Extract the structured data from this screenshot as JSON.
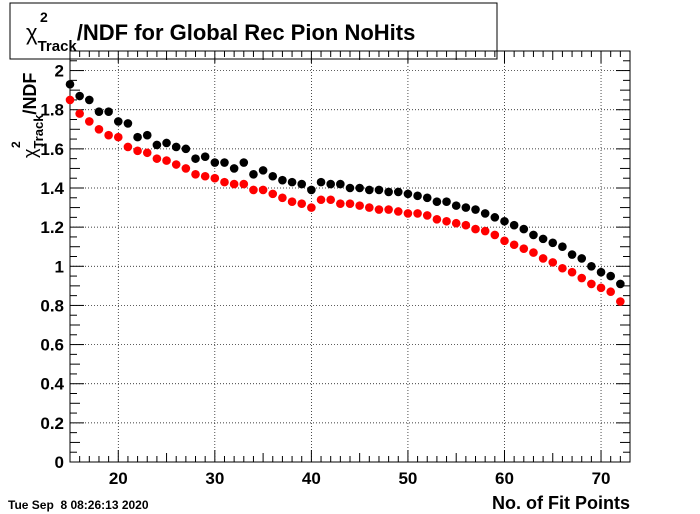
{
  "chart_data": {
    "type": "scatter",
    "title": {
      "symbol": "χ",
      "superscript": "2",
      "subscript": "Track",
      "text": "/NDF for Global Rec Pion NoHits"
    },
    "xlabel": "No. of Fit Points",
    "ylabel": {
      "symbol": "χ",
      "superscript": "2",
      "subscript": "Track",
      "text": "/NDF"
    },
    "xlim": [
      15,
      73
    ],
    "ylim": [
      0,
      2.1
    ],
    "x_major_ticks": [
      20,
      30,
      40,
      50,
      60,
      70
    ],
    "x_tick_labels": [
      "20",
      "30",
      "40",
      "50",
      "60",
      "70"
    ],
    "y_major_ticks": [
      0,
      0.2,
      0.4,
      0.6,
      0.8,
      1,
      1.2,
      1.4,
      1.6,
      1.8,
      2
    ],
    "y_tick_labels": [
      "0",
      "0.2",
      "0.4",
      "0.6",
      "0.8",
      "1",
      "1.2",
      "1.4",
      "1.6",
      "1.8",
      "2"
    ],
    "grid": true,
    "x": [
      15,
      16,
      17,
      18,
      19,
      20,
      21,
      22,
      23,
      24,
      25,
      26,
      27,
      28,
      29,
      30,
      31,
      32,
      33,
      34,
      35,
      36,
      37,
      38,
      39,
      40,
      41,
      42,
      43,
      44,
      45,
      46,
      47,
      48,
      49,
      50,
      51,
      52,
      53,
      54,
      55,
      56,
      57,
      58,
      59,
      60,
      61,
      62,
      63,
      64,
      65,
      66,
      67,
      68,
      69,
      70,
      71,
      72
    ],
    "series": [
      {
        "color": "#000000",
        "values": [
          1.93,
          1.87,
          1.85,
          1.79,
          1.79,
          1.74,
          1.73,
          1.66,
          1.67,
          1.62,
          1.63,
          1.61,
          1.6,
          1.55,
          1.56,
          1.53,
          1.53,
          1.5,
          1.53,
          1.47,
          1.49,
          1.46,
          1.44,
          1.43,
          1.42,
          1.39,
          1.43,
          1.42,
          1.42,
          1.4,
          1.4,
          1.39,
          1.39,
          1.38,
          1.38,
          1.37,
          1.36,
          1.35,
          1.33,
          1.33,
          1.31,
          1.3,
          1.29,
          1.27,
          1.25,
          1.23,
          1.21,
          1.19,
          1.16,
          1.14,
          1.12,
          1.1,
          1.06,
          1.04,
          1.0,
          0.97,
          0.95,
          0.91
        ]
      },
      {
        "color": "#ff0000",
        "values": [
          1.85,
          1.78,
          1.74,
          1.7,
          1.67,
          1.66,
          1.61,
          1.59,
          1.58,
          1.55,
          1.54,
          1.52,
          1.5,
          1.47,
          1.46,
          1.45,
          1.43,
          1.42,
          1.42,
          1.39,
          1.39,
          1.37,
          1.35,
          1.33,
          1.32,
          1.3,
          1.34,
          1.34,
          1.32,
          1.32,
          1.31,
          1.3,
          1.29,
          1.29,
          1.28,
          1.27,
          1.27,
          1.26,
          1.24,
          1.23,
          1.22,
          1.21,
          1.19,
          1.18,
          1.16,
          1.13,
          1.11,
          1.09,
          1.07,
          1.04,
          1.02,
          0.99,
          0.97,
          0.94,
          0.91,
          0.89,
          0.87,
          0.82
        ]
      }
    ]
  },
  "timestamp": "Tue Sep  8 08:26:13 2020"
}
